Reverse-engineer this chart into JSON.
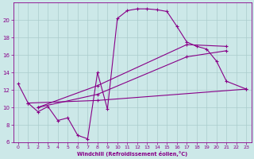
{
  "xlabel": "Windchill (Refroidissement éolien,°C)",
  "bg_color": "#cce8e8",
  "grid_color": "#aacccc",
  "line_color": "#880088",
  "xlim": [
    -0.5,
    23.5
  ],
  "ylim": [
    6,
    22
  ],
  "xticks": [
    0,
    1,
    2,
    3,
    4,
    5,
    6,
    7,
    8,
    9,
    10,
    11,
    12,
    13,
    14,
    15,
    16,
    17,
    18,
    19,
    20,
    21,
    22,
    23
  ],
  "yticks": [
    6,
    8,
    10,
    12,
    14,
    16,
    18,
    20
  ],
  "series": {
    "main_curve": {
      "x": [
        0,
        1,
        2,
        3,
        4,
        5,
        6,
        7,
        8,
        9,
        10,
        11,
        12,
        13,
        14,
        15,
        16,
        17,
        18,
        19,
        20,
        21,
        23
      ],
      "y": [
        12.7,
        10.5,
        9.5,
        10.1,
        8.5,
        8.8,
        6.8,
        6.4,
        14.0,
        9.8,
        20.2,
        21.1,
        21.3,
        21.3,
        21.2,
        21.0,
        19.3,
        17.5,
        17.0,
        16.7,
        15.3,
        13.0,
        12.1
      ]
    },
    "line_steep": {
      "x": [
        2,
        8,
        17,
        21
      ],
      "y": [
        10.0,
        12.5,
        17.2,
        17.0
      ]
    },
    "line_mid": {
      "x": [
        2,
        8,
        17,
        21
      ],
      "y": [
        10.0,
        11.5,
        15.8,
        16.5
      ]
    },
    "line_flat": {
      "x": [
        1,
        8,
        23
      ],
      "y": [
        10.5,
        10.8,
        12.1
      ]
    }
  }
}
